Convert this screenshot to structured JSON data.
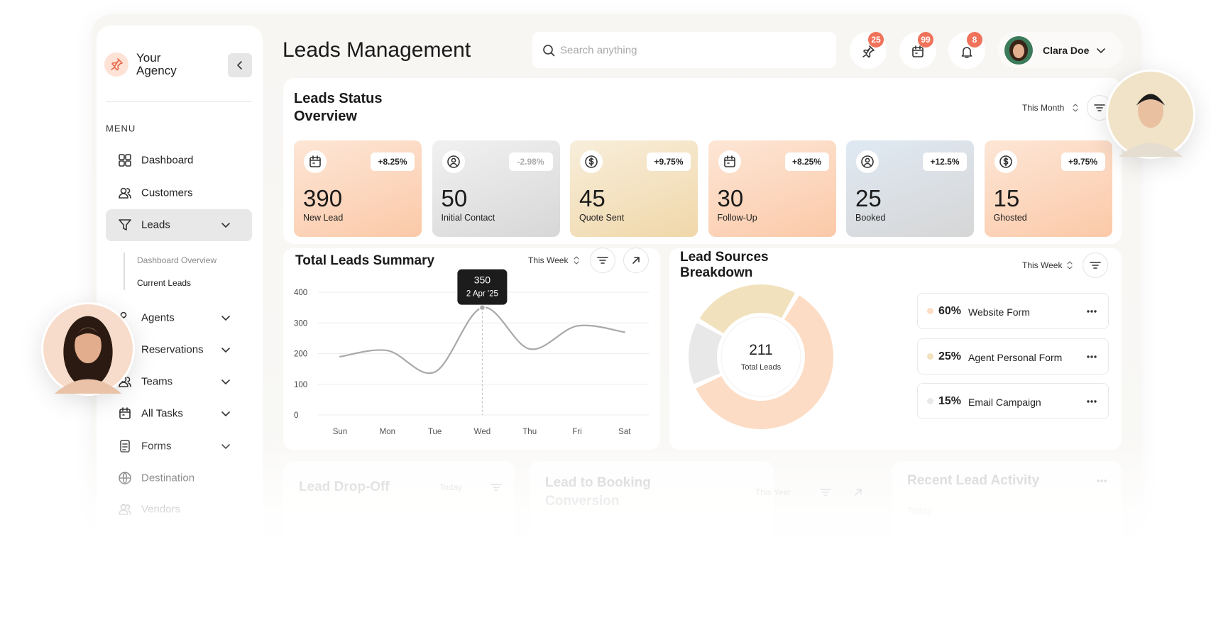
{
  "brand": {
    "line1": "Your",
    "line2": "Agency"
  },
  "menu": {
    "heading": "MENU",
    "items": [
      "Dashboard",
      "Customers",
      "Leads",
      "Agents",
      "Reservations",
      "Teams",
      "All Tasks",
      "Forms",
      "Destination",
      "Vendors"
    ],
    "submenu": [
      "Dashboard Overview",
      "Current Leads"
    ]
  },
  "header": {
    "title": "Leads Management",
    "search_placeholder": "Search anything",
    "badges": [
      25,
      99,
      8
    ],
    "user": "Clara Doe"
  },
  "status_overview": {
    "title": "Leads Status Overview",
    "period": "This Month",
    "cards": [
      {
        "value": 390,
        "label": "New Lead",
        "change": "+8.25%"
      },
      {
        "value": 50,
        "label": "Initial Contact",
        "change": "-2.98%"
      },
      {
        "value": 45,
        "label": "Quote Sent",
        "change": "+9.75%"
      },
      {
        "value": 30,
        "label": "Follow-Up",
        "change": "+8.25%"
      },
      {
        "value": 25,
        "label": "Booked",
        "change": "+12.5%"
      },
      {
        "value": 15,
        "label": "Ghosted",
        "change": "+9.75%"
      }
    ]
  },
  "chart_data": [
    {
      "type": "line",
      "title": "Total Leads Summary",
      "period": "This Week",
      "categories": [
        "Sun",
        "Mon",
        "Tue",
        "Wed",
        "Thu",
        "Fri",
        "Sat"
      ],
      "values": [
        190,
        210,
        140,
        350,
        215,
        290,
        270
      ],
      "ylim": [
        0,
        400
      ],
      "yticks": [
        0,
        100,
        200,
        300,
        400
      ],
      "grid": true,
      "color": "#a9a9a9",
      "tooltip_label": "2 Apr '25"
    },
    {
      "type": "pie",
      "title": "Lead Sources Breakdown",
      "period": "This Week",
      "total": 211,
      "total_label": "Total Leads",
      "categories": [
        "Website Form",
        "Agent Personal Form",
        "Email Campaign"
      ],
      "values": [
        60,
        25,
        15
      ],
      "value_labels": [
        "60%",
        "25%",
        "15%"
      ],
      "colors": [
        "#fcdcc4",
        "#f1e2bd",
        "#e8e8e8"
      ]
    }
  ],
  "bottom_cards": [
    {
      "title": "Lead Drop-Off",
      "period": "Today"
    },
    {
      "title": "Lead to Booking Conversion",
      "period": "This Year"
    },
    {
      "title": "Recent Lead Activity",
      "period": "Today"
    }
  ]
}
